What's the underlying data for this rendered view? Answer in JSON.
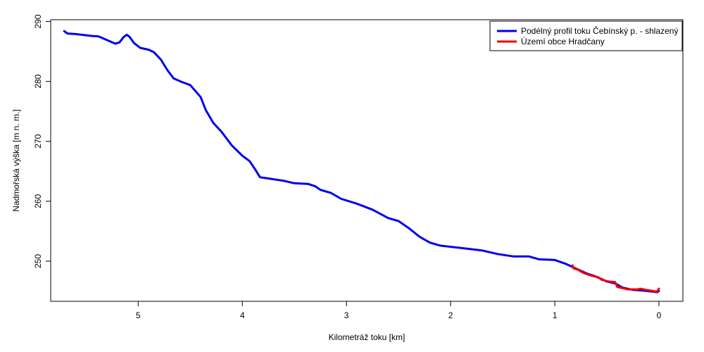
{
  "chart_data": {
    "type": "line",
    "xlabel": "Kilometráž toku [km]",
    "ylabel": "Nadmořská výška [m n. m.]",
    "xlim": [
      5.84,
      -0.23
    ],
    "ylim": [
      243.3,
      290.3
    ],
    "xticks": [
      5,
      4,
      3,
      2,
      1,
      0
    ],
    "yticks": [
      250,
      260,
      270,
      280,
      290
    ],
    "legend_position": "top-right",
    "series": [
      {
        "name": "Podélný profil toku Čebínský p. - shlazený",
        "color": "#0000ee",
        "points": [
          [
            5.71,
            288.4
          ],
          [
            5.68,
            288.0
          ],
          [
            5.6,
            287.9
          ],
          [
            5.5,
            287.7
          ],
          [
            5.45,
            287.6
          ],
          [
            5.38,
            287.5
          ],
          [
            5.3,
            286.9
          ],
          [
            5.22,
            286.3
          ],
          [
            5.18,
            286.5
          ],
          [
            5.14,
            287.4
          ],
          [
            5.11,
            287.8
          ],
          [
            5.08,
            287.4
          ],
          [
            5.04,
            286.4
          ],
          [
            4.98,
            285.6
          ],
          [
            4.9,
            285.3
          ],
          [
            4.85,
            284.9
          ],
          [
            4.78,
            283.6
          ],
          [
            4.72,
            281.9
          ],
          [
            4.66,
            280.5
          ],
          [
            4.58,
            279.9
          ],
          [
            4.5,
            279.4
          ],
          [
            4.45,
            278.4
          ],
          [
            4.4,
            277.4
          ],
          [
            4.35,
            275.2
          ],
          [
            4.28,
            273.1
          ],
          [
            4.2,
            271.6
          ],
          [
            4.1,
            269.3
          ],
          [
            4.0,
            267.6
          ],
          [
            3.93,
            266.7
          ],
          [
            3.88,
            265.4
          ],
          [
            3.83,
            264.0
          ],
          [
            3.75,
            263.8
          ],
          [
            3.6,
            263.4
          ],
          [
            3.5,
            263.0
          ],
          [
            3.37,
            262.9
          ],
          [
            3.3,
            262.5
          ],
          [
            3.25,
            261.9
          ],
          [
            3.15,
            261.4
          ],
          [
            3.05,
            260.4
          ],
          [
            2.9,
            259.6
          ],
          [
            2.75,
            258.6
          ],
          [
            2.6,
            257.2
          ],
          [
            2.5,
            256.7
          ],
          [
            2.4,
            255.5
          ],
          [
            2.3,
            254.1
          ],
          [
            2.2,
            253.1
          ],
          [
            2.1,
            252.6
          ],
          [
            1.9,
            252.2
          ],
          [
            1.7,
            251.8
          ],
          [
            1.55,
            251.2
          ],
          [
            1.4,
            250.8
          ],
          [
            1.25,
            250.8
          ],
          [
            1.15,
            250.3
          ],
          [
            1.0,
            250.2
          ],
          [
            0.9,
            249.6
          ],
          [
            0.8,
            248.8
          ],
          [
            0.7,
            248.0
          ],
          [
            0.6,
            247.4
          ],
          [
            0.5,
            246.6
          ],
          [
            0.42,
            246.3
          ],
          [
            0.35,
            245.6
          ],
          [
            0.25,
            245.2
          ],
          [
            0.15,
            245.1
          ],
          [
            0.05,
            244.9
          ],
          [
            0.02,
            244.8
          ],
          [
            0.0,
            245.0
          ]
        ]
      },
      {
        "name": "Území obce Hradčany",
        "color": "#ee0000",
        "points": [
          [
            0.83,
            249.3
          ],
          [
            0.82,
            248.8
          ],
          [
            0.78,
            248.6
          ],
          [
            0.72,
            248.0
          ],
          [
            0.65,
            247.6
          ],
          [
            0.58,
            247.3
          ],
          [
            0.55,
            246.9
          ],
          [
            0.48,
            246.6
          ],
          [
            0.42,
            246.5
          ],
          [
            0.4,
            245.7
          ],
          [
            0.35,
            245.5
          ],
          [
            0.3,
            245.3
          ],
          [
            0.2,
            245.3
          ],
          [
            0.18,
            245.4
          ],
          [
            0.12,
            245.2
          ],
          [
            0.05,
            245.0
          ],
          [
            0.02,
            244.9
          ],
          [
            0.0,
            245.4
          ]
        ]
      }
    ]
  }
}
